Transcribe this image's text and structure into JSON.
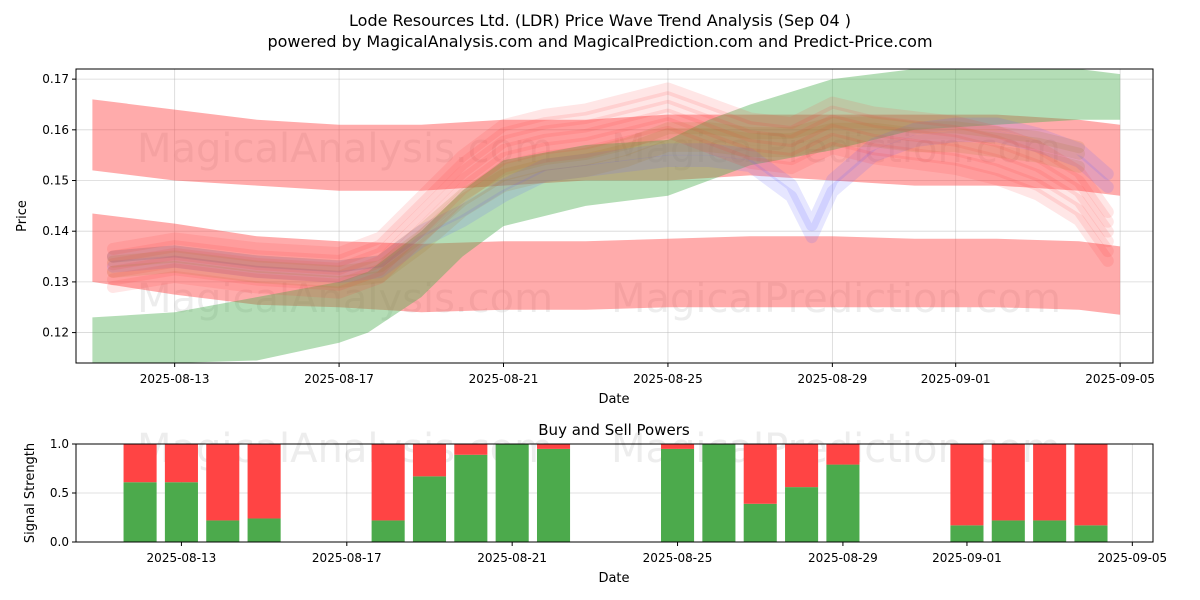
{
  "chart_data": [
    {
      "type": "area",
      "title": "Lode Resources Ltd. (LDR) Price Wave Trend Analysis (Sep 04 )",
      "subtitle": "powered by MagicalAnalysis.com and MagicalPrediction.com and Predict-Price.com",
      "xlabel": "Date",
      "ylabel": "Price",
      "xlim": [
        -1.4,
        24.8
      ],
      "ylim": [
        0.114,
        0.172
      ],
      "x_tick_labels": [
        "2025-08-13",
        "2025-08-17",
        "2025-08-21",
        "2025-08-25",
        "2025-08-29",
        "2025-09-01",
        "2025-09-05"
      ],
      "x_tick_positions": [
        1,
        5,
        9,
        13,
        17,
        20,
        24
      ],
      "y_ticks": [
        0.12,
        0.13,
        0.14,
        0.15,
        0.16,
        0.17
      ],
      "watermarks": [
        "MagicalAnalysis.com",
        "MagicalPrediction.com"
      ],
      "colors": {
        "red": "#ff0000",
        "green": "#008000",
        "blue": "#0000ff",
        "grid": "#b0b0b0"
      },
      "series": [
        {
          "name": "upper red band",
          "color": "#ff4444",
          "x": [
            -1,
            1,
            3,
            5,
            7,
            9,
            11,
            13,
            15,
            17,
            19,
            21,
            23,
            24
          ],
          "upper": [
            0.166,
            0.164,
            0.162,
            0.161,
            0.161,
            0.162,
            0.162,
            0.163,
            0.163,
            0.163,
            0.163,
            0.163,
            0.162,
            0.161
          ],
          "lower": [
            0.152,
            0.15,
            0.149,
            0.148,
            0.148,
            0.149,
            0.15,
            0.15,
            0.151,
            0.15,
            0.149,
            0.149,
            0.148,
            0.147
          ]
        },
        {
          "name": "lower red band",
          "color": "#ff4444",
          "x": [
            -1,
            1,
            3,
            5,
            7,
            9,
            11,
            13,
            15,
            17,
            19,
            21,
            23,
            24
          ],
          "upper": [
            0.1435,
            0.1415,
            0.139,
            0.138,
            0.1375,
            0.138,
            0.138,
            0.1385,
            0.139,
            0.139,
            0.1385,
            0.1385,
            0.138,
            0.137
          ],
          "lower": [
            0.13,
            0.1275,
            0.1255,
            0.125,
            0.124,
            0.1245,
            0.1245,
            0.125,
            0.125,
            0.125,
            0.125,
            0.125,
            0.1245,
            0.1235
          ]
        },
        {
          "name": "green trend band",
          "color": "#4caf50",
          "x": [
            -1,
            1,
            3,
            5,
            5.7,
            7,
            8,
            9,
            11,
            13,
            14,
            15,
            17,
            19,
            21,
            23,
            24
          ],
          "upper": [
            0.123,
            0.124,
            0.127,
            0.13,
            0.132,
            0.14,
            0.148,
            0.154,
            0.157,
            0.158,
            0.162,
            0.165,
            0.17,
            0.172,
            0.172,
            0.172,
            0.171
          ],
          "lower": [
            0.114,
            0.114,
            0.1145,
            0.118,
            0.12,
            0.127,
            0.135,
            0.141,
            0.145,
            0.147,
            0.15,
            0.153,
            0.156,
            0.16,
            0.161,
            0.162,
            0.162
          ]
        },
        {
          "name": "blue wave",
          "color": "#6666ff",
          "x": [
            -0.5,
            1,
            3,
            5,
            6,
            7,
            8,
            9,
            10,
            11,
            12,
            13,
            14,
            15,
            16,
            16.5,
            17,
            18,
            19,
            20,
            21,
            22,
            23,
            23.7
          ],
          "value": [
            0.134,
            0.135,
            0.133,
            0.132,
            0.133,
            0.139,
            0.143,
            0.148,
            0.152,
            0.153,
            0.154,
            0.155,
            0.155,
            0.154,
            0.148,
            0.14,
            0.149,
            0.156,
            0.159,
            0.16,
            0.16,
            0.158,
            0.155,
            0.15
          ]
        },
        {
          "name": "red waves",
          "color": "#ff3333",
          "x": [
            -0.5,
            1,
            3,
            5,
            6,
            7,
            8,
            9,
            10,
            11,
            12,
            13,
            14,
            15,
            16,
            17,
            18,
            19,
            20,
            21,
            22,
            23,
            23.7
          ],
          "value": [
            0.132,
            0.134,
            0.132,
            0.131,
            0.134,
            0.142,
            0.15,
            0.156,
            0.158,
            0.159,
            0.161,
            0.163,
            0.16,
            0.157,
            0.156,
            0.16,
            0.158,
            0.157,
            0.156,
            0.154,
            0.151,
            0.146,
            0.138
          ]
        },
        {
          "name": "olive waves",
          "color": "#aa7a30",
          "x": [
            -0.5,
            1,
            3,
            5,
            6,
            7,
            8,
            9,
            10,
            11,
            12,
            13,
            14,
            15,
            16,
            17,
            18,
            19,
            20,
            21,
            22,
            23
          ],
          "value": [
            0.133,
            0.134,
            0.132,
            0.131,
            0.132,
            0.138,
            0.145,
            0.15,
            0.152,
            0.153,
            0.155,
            0.158,
            0.158,
            0.157,
            0.157,
            0.159,
            0.159,
            0.158,
            0.158,
            0.157,
            0.156,
            0.154
          ]
        }
      ]
    },
    {
      "type": "bar",
      "title": "Buy and Sell Powers",
      "xlabel": "Date",
      "ylabel": "Signal Strength",
      "xlim": [
        -1.4,
        24.8
      ],
      "ylim": [
        0,
        1
      ],
      "y_ticks": [
        0.0,
        0.5,
        1.0
      ],
      "y_tick_labels": [
        "0.0",
        "0.5",
        "1.0"
      ],
      "x_tick_labels": [
        "2025-08-13",
        "2025-08-17",
        "2025-08-21",
        "2025-08-25",
        "2025-08-29",
        "2025-09-01",
        "2025-09-05"
      ],
      "x_tick_positions": [
        1,
        5,
        9,
        13,
        17,
        20,
        24
      ],
      "colors": {
        "buy": "#4caa4c",
        "sell": "#ff4444"
      },
      "series": [
        {
          "name": "Buy",
          "x": [
            0,
            1,
            2,
            3,
            6,
            7,
            8,
            9,
            10,
            13,
            14,
            15,
            16,
            17,
            20,
            21,
            22,
            23
          ],
          "values": [
            0.61,
            0.61,
            0.22,
            0.24,
            0.22,
            0.67,
            0.89,
            1.0,
            0.95,
            0.95,
            1.0,
            0.39,
            0.56,
            0.79,
            0.17,
            0.22,
            0.22,
            0.17
          ]
        },
        {
          "name": "Sell",
          "x": [
            0,
            1,
            2,
            3,
            6,
            7,
            8,
            9,
            10,
            13,
            14,
            15,
            16,
            17,
            20,
            21,
            22,
            23
          ],
          "values": [
            0.39,
            0.39,
            0.78,
            0.76,
            0.78,
            0.33,
            0.11,
            0.0,
            0.05,
            0.05,
            0.0,
            0.61,
            0.44,
            0.21,
            0.83,
            0.78,
            0.78,
            0.83
          ]
        }
      ]
    }
  ]
}
